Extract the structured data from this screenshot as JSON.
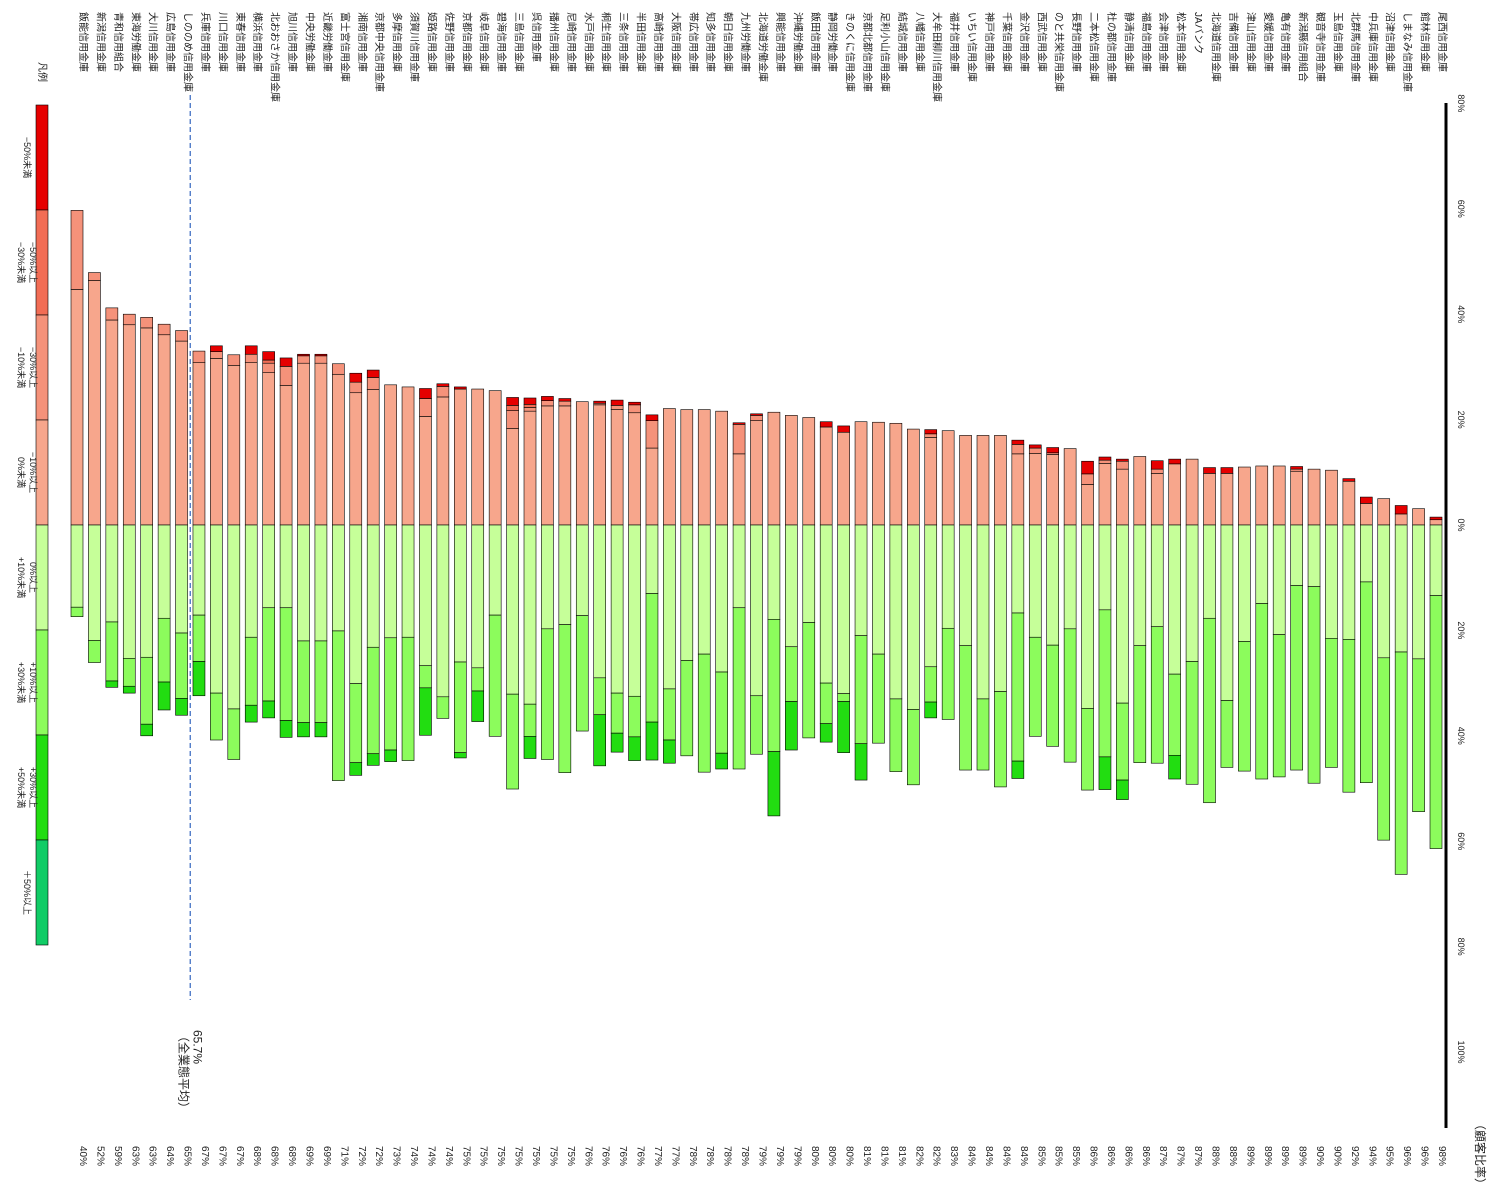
{
  "chart_data": {
    "type": "bar",
    "orientation": "vertical-stacked-diverging",
    "title": "",
    "ylabel": "（顧客比率）",
    "average_label": [
      "65.7%",
      "（全業態平均）"
    ],
    "average_value": 65.7,
    "axis_ticks_negative": [
      "80%",
      "60%",
      "40%",
      "20%",
      "0%"
    ],
    "axis_ticks_positive": [
      "20%",
      "40%",
      "60%",
      "80%",
      "100%"
    ],
    "legend_title": "凡例",
    "legend": [
      {
        "label": "−50%未満",
        "color": "#e60000"
      },
      {
        "label": "−50%以上\n−30%未満",
        "color": "#f26d55"
      },
      {
        "label": "−30%以上\n−10%未満",
        "color": "#f5927a"
      },
      {
        "label": "−10%以上\n0%未満",
        "color": "#f7a68c"
      },
      {
        "label": "0%以上\n+10%未満",
        "color": "#c6ff99"
      },
      {
        "label": "+10%以上\n+30%未満",
        "color": "#8cfc5c"
      },
      {
        "label": "+30%以上\n+50%未満",
        "color": "#22dd11"
      },
      {
        "label": "＋50%以上",
        "color": "#11cc66"
      }
    ],
    "categories": [
      "飯能信用金庫",
      "新潟信用金庫",
      "青和信用組合",
      "東海労働金庫",
      "大川信用金庫",
      "広島信用金庫",
      "しののめ信用金庫",
      "兵庫信用金庫",
      "川口信用金庫",
      "東春信用金庫",
      "横浜信用金庫",
      "北おおさか信用金庫",
      "旭川信用金庫",
      "中央労働金庫",
      "近畿労働金庫",
      "富士宮信用金庫",
      "湘南信用金庫",
      "京都中央信用金庫",
      "多摩信用金庫",
      "須賀川信用金庫",
      "姫路信用金庫",
      "佐野信用金庫",
      "京都信用金庫",
      "岐阜信用金庫",
      "碧海信用金庫",
      "三島信用金庫",
      "呉信用金庫",
      "播州信用金庫",
      "尼崎信用金庫",
      "水戸信用金庫",
      "桐生信用金庫",
      "三条信用金庫",
      "半田信用金庫",
      "高崎信用金庫",
      "大阪信用金庫",
      "帯広信用金庫",
      "知多信用金庫",
      "朝日信用金庫",
      "九州労働金庫",
      "北海道労働金庫",
      "興能信用金庫",
      "沖縄労働金庫",
      "飯田信用金庫",
      "静岡労働金庫",
      "きのくに信用金庫",
      "京都北都信用金庫",
      "足利小山信用金庫",
      "結城信用金庫",
      "八幡信用金庫",
      "大牟田柳川信用金庫",
      "福井信用金庫",
      "いちい信用金庫",
      "神戸信用金庫",
      "千葉信用金庫",
      "金沢信用金庫",
      "西武信用金庫",
      "のと共栄信用金庫",
      "長野信用金庫",
      "二本松信用金庫",
      "杜の都信用金庫",
      "静清信用金庫",
      "福島信用金庫",
      "会津信用金庫",
      "松本信用金庫",
      "JAバンク",
      "北海道信用金庫",
      "吉備信用金庫",
      "津山信用金庫",
      "愛媛信用金庫",
      "亀有信用金庫",
      "新潟縣信用組合",
      "観音寺信用金庫",
      "玉島信用金庫",
      "北群馬信用金庫",
      "中兵庫信用金庫",
      "沼津信用金庫",
      "しまなみ信用金庫",
      "館林信用金庫",
      "尾西信用金庫"
    ],
    "x_labels": [
      "40%",
      "52%",
      "59%",
      "63%",
      "63%",
      "64%",
      "65%",
      "67%",
      "67%",
      "67%",
      "68%",
      "68%",
      "68%",
      "69%",
      "69%",
      "71%",
      "72%",
      "72%",
      "73%",
      "74%",
      "74%",
      "74%",
      "75%",
      "75%",
      "75%",
      "75%",
      "75%",
      "75%",
      "75%",
      "76%",
      "76%",
      "76%",
      "76%",
      "77%",
      "77%",
      "78%",
      "78%",
      "78%",
      "78%",
      "79%",
      "79%",
      "79%",
      "80%",
      "80%",
      "80%",
      "81%",
      "81%",
      "81%",
      "82%",
      "82%",
      "83%",
      "84%",
      "84%",
      "84%",
      "84%",
      "85%",
      "85%",
      "85%",
      "86%",
      "86%",
      "86%",
      "86%",
      "87%",
      "87%",
      "87%",
      "88%",
      "88%",
      "89%",
      "89%",
      "89%",
      "89%",
      "90%",
      "90%",
      "92%",
      "94%",
      "95%",
      "96%",
      "96%",
      "98%"
    ],
    "value_units": "percent of customers; negative series drawn upward, positive series drawn downward",
    "series": [
      {
        "name": "−50%未満",
        "values": [
          0,
          0,
          0,
          0,
          0,
          0,
          0,
          0,
          1.1,
          0,
          1.6,
          1.6,
          1.6,
          0.3,
          0.3,
          0,
          1.7,
          1.4,
          0,
          0,
          1.9,
          0.5,
          0.4,
          0,
          0,
          1.5,
          1.2,
          0.8,
          0.5,
          0,
          0.4,
          1.0,
          0.5,
          1.1,
          0,
          0,
          0,
          0,
          0.3,
          0.3,
          0,
          0,
          0,
          1.0,
          1.2,
          0,
          0,
          0,
          0,
          0.8,
          0,
          0,
          0,
          0,
          0.8,
          0.6,
          1.0,
          0,
          2.4,
          0.6,
          0.4,
          0,
          1.6,
          0.9,
          0,
          1.1,
          1.1,
          0,
          0,
          0,
          0.5,
          0,
          0,
          0.5,
          1.2,
          0,
          1.6,
          0,
          0.5
        ]
      },
      {
        "name": "−50%以上−30%未満",
        "values": [
          0,
          0,
          0,
          0,
          0,
          0,
          0,
          0,
          0,
          0,
          0,
          0.6,
          0,
          0,
          0,
          0,
          0,
          0,
          0,
          0,
          0,
          0,
          0,
          0,
          0,
          1.0,
          0.6,
          0,
          0,
          0,
          0,
          0,
          0,
          0,
          0,
          0,
          0,
          0,
          0,
          0,
          0,
          0,
          0,
          0,
          0,
          0,
          0,
          0,
          0,
          0,
          0,
          0,
          0,
          0,
          0,
          0,
          0,
          0,
          0,
          0,
          0,
          0,
          0,
          0,
          0,
          0,
          0,
          0,
          0,
          0,
          0,
          0,
          0,
          0,
          0,
          0,
          0,
          0,
          0
        ]
      },
      {
        "name": "−30%以上−10%未満",
        "values": [
          15,
          1.5,
          2.3,
          2.0,
          2.0,
          2.0,
          2.0,
          2.2,
          1.3,
          2.0,
          1.6,
          1.8,
          3.6,
          1.4,
          1.4,
          2.0,
          2.0,
          2.3,
          0,
          0,
          3.4,
          2.0,
          0,
          0,
          0,
          3.4,
          0.7,
          1.0,
          0.9,
          0,
          0.3,
          0.8,
          1.5,
          5.2,
          0,
          0,
          0,
          0,
          5.6,
          1.0,
          0,
          0,
          0,
          0,
          0,
          0,
          0,
          0,
          0,
          0.7,
          0,
          0,
          0,
          0,
          1.8,
          1.0,
          0.3,
          0,
          2.0,
          0.6,
          1.5,
          0,
          0.8,
          0,
          0,
          0,
          0,
          0,
          0,
          0,
          0.4,
          0,
          0,
          0,
          0,
          0,
          0,
          0,
          0
        ]
      },
      {
        "name": "−10%以上0%未満",
        "values": [
          44.7,
          46.4,
          38.9,
          38.0,
          37.4,
          36.1,
          34.9,
          30.8,
          31.6,
          30.3,
          30.8,
          28.9,
          26.5,
          30.7,
          30.7,
          28.6,
          25.1,
          25.7,
          26.6,
          26.2,
          20.6,
          24.3,
          25.8,
          25.8,
          25.5,
          18.3,
          21.6,
          22.6,
          22.6,
          23.4,
          22.8,
          21.9,
          21.3,
          14.6,
          22.1,
          21.9,
          21.9,
          21.6,
          13.5,
          19.8,
          21.4,
          20.8,
          20.4,
          18.6,
          17.6,
          19.6,
          19.5,
          19.3,
          18.2,
          16.6,
          17.9,
          17.0,
          17.0,
          17.0,
          13.5,
          13.6,
          13.4,
          14.5,
          7.7,
          11.7,
          10.6,
          13.0,
          9.8,
          11.6,
          12.5,
          9.8,
          9.8,
          11.0,
          11.2,
          11.2,
          10.2,
          10.6,
          10.4,
          8.3,
          4.1,
          5.0,
          2.1,
          3.1,
          1.0
        ]
      },
      {
        "name": "0%以上+10%未満",
        "values": [
          15.6,
          21.9,
          18.4,
          25.3,
          25.1,
          17.7,
          20.5,
          17.1,
          31.9,
          34.9,
          21.3,
          15.7,
          15.7,
          22.0,
          22.0,
          20.1,
          30.1,
          23.2,
          21.4,
          21.3,
          26.7,
          32.6,
          26.0,
          27.1,
          17.1,
          32.1,
          34.0,
          19.7,
          18.9,
          17.2,
          29.0,
          31.9,
          32.5,
          13.0,
          31.1,
          25.7,
          24.5,
          27.9,
          15.7,
          32.4,
          17.9,
          23.1,
          18.5,
          30.0,
          32.0,
          21.0,
          24.5,
          33.0,
          35.0,
          26.9,
          19.6,
          22.9,
          33.0,
          31.6,
          16.7,
          21.3,
          22.8,
          19.7,
          34.8,
          16.1,
          33.8,
          22.9,
          19.3,
          28.3,
          25.9,
          17.7,
          33.3,
          22.1,
          14.9,
          20.8,
          11.5,
          11.7,
          21.5,
          21.7,
          10.8,
          25.2,
          24.1,
          25.4,
          13.4
        ]
      },
      {
        "name": "+10%以上+30%未満",
        "values": [
          1.8,
          4.2,
          11.2,
          5.3,
          12.7,
          12.1,
          12.4,
          8.8,
          8.9,
          9.6,
          12.9,
          17.7,
          21.4,
          15.5,
          15.5,
          28.4,
          15.0,
          20.2,
          21.3,
          23.4,
          4.2,
          4.1,
          17.2,
          4.4,
          23.0,
          18.0,
          6.1,
          24.8,
          28.1,
          21.9,
          7.0,
          7.6,
          7.7,
          24.4,
          9.7,
          18.1,
          22.4,
          15.4,
          30.6,
          11.1,
          25.1,
          10.4,
          21.9,
          7.7,
          1.5,
          20.5,
          16.9,
          13.8,
          14.3,
          6.7,
          17.3,
          23.6,
          13.5,
          18.1,
          28.1,
          18.8,
          19.2,
          25.3,
          15.5,
          27.9,
          14.6,
          22.2,
          25.9,
          15.4,
          23.3,
          35.0,
          12.7,
          24.6,
          33.3,
          27.0,
          35.0,
          37.3,
          24.5,
          29.0,
          38.1,
          34.6,
          42.2,
          29.0,
          48.0
        ]
      },
      {
        "name": "+30%以上+50%未満",
        "values": [
          0,
          0,
          1.2,
          1.3,
          2.2,
          5.3,
          3.2,
          6.5,
          0,
          0,
          3.2,
          3.2,
          3.2,
          2.7,
          2.7,
          0,
          2.4,
          2.2,
          2.2,
          0,
          9.0,
          0,
          1.0,
          5.8,
          0,
          0,
          4.2,
          0,
          0,
          0,
          9.7,
          3.6,
          4.5,
          7.2,
          4.4,
          0,
          0,
          3.0,
          0,
          0,
          12.2,
          9.2,
          0,
          3.5,
          9.7,
          6.9,
          0,
          0,
          0,
          3.0,
          0,
          0,
          0,
          0,
          3.3,
          0,
          0,
          0,
          0,
          6.2,
          3.7,
          0,
          0,
          4.5,
          0,
          0,
          0,
          0,
          0,
          0,
          0,
          0,
          0,
          0,
          0,
          0,
          0,
          0,
          0
        ]
      },
      {
        "name": "＋50%以上",
        "values": [
          0,
          0,
          0,
          0,
          0,
          0,
          0,
          0,
          0,
          0,
          0,
          0,
          0,
          0,
          0,
          0,
          0,
          0,
          0,
          0,
          0,
          0,
          0,
          0,
          0,
          0,
          0,
          0,
          0,
          0,
          0,
          0,
          0,
          0,
          0,
          0,
          0,
          0,
          0,
          0,
          0,
          0,
          0,
          0,
          0,
          0,
          0,
          0,
          0,
          0,
          0,
          0,
          0,
          0,
          0,
          0,
          0,
          0,
          0,
          0,
          0,
          0,
          0,
          0,
          0,
          0,
          0,
          0,
          0,
          0,
          0,
          0,
          0,
          0,
          0,
          0,
          0,
          0,
          0
        ]
      }
    ],
    "grid": false,
    "legend_position": "left"
  }
}
